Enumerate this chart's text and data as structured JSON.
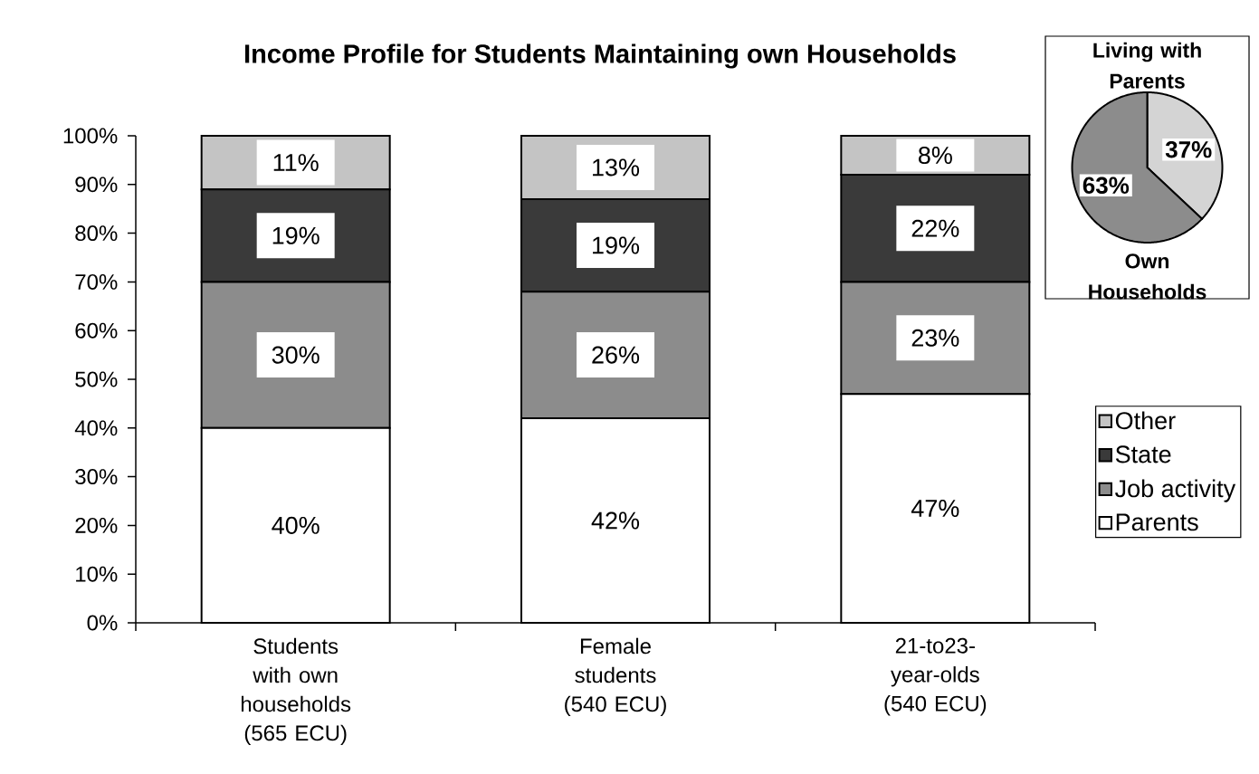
{
  "chart_data": [
    {
      "type": "bar",
      "stacked": true,
      "title": "Income Profile for Students Maintaining own Households",
      "categories": [
        "Students with own households (565 ECU)",
        "Female students (540 ECU)",
        "21-to23-year-olds (540 ECU)"
      ],
      "series": [
        {
          "name": "Parents",
          "color": "#ffffff",
          "values": [
            40,
            42,
            47
          ],
          "value_labels": [
            "40%",
            "42%",
            "47%"
          ]
        },
        {
          "name": "Job activity",
          "color": "#8c8c8c",
          "values": [
            30,
            26,
            23
          ],
          "value_labels": [
            "30%",
            "26%",
            "23%"
          ]
        },
        {
          "name": "State",
          "color": "#3a3a3a",
          "values": [
            19,
            19,
            22
          ],
          "value_labels": [
            "19%",
            "19%",
            "22%"
          ]
        },
        {
          "name": "Other",
          "color": "#c4c4c4",
          "values": [
            11,
            13,
            8
          ],
          "value_labels": [
            "11%",
            "13%",
            "8%"
          ]
        }
      ],
      "ylim": [
        0,
        100
      ],
      "yticks": [
        {
          "value": 0,
          "label": "0%"
        },
        {
          "value": 10,
          "label": "10%"
        },
        {
          "value": 20,
          "label": "20%"
        },
        {
          "value": 30,
          "label": "30%"
        },
        {
          "value": 40,
          "label": "40%"
        },
        {
          "value": 50,
          "label": "50%"
        },
        {
          "value": 60,
          "label": "60%"
        },
        {
          "value": 70,
          "label": "70%"
        },
        {
          "value": 80,
          "label": "80%"
        },
        {
          "value": 90,
          "label": "90%"
        },
        {
          "value": 100,
          "label": "100%"
        }
      ],
      "legend": "right"
    },
    {
      "type": "pie",
      "categories": [
        "Living with Parents",
        "Own Households"
      ],
      "values": [
        37,
        63
      ],
      "colors": [
        "#d4d4d4",
        "#8c8c8c"
      ],
      "value_labels": [
        "37%",
        "63%"
      ]
    }
  ]
}
